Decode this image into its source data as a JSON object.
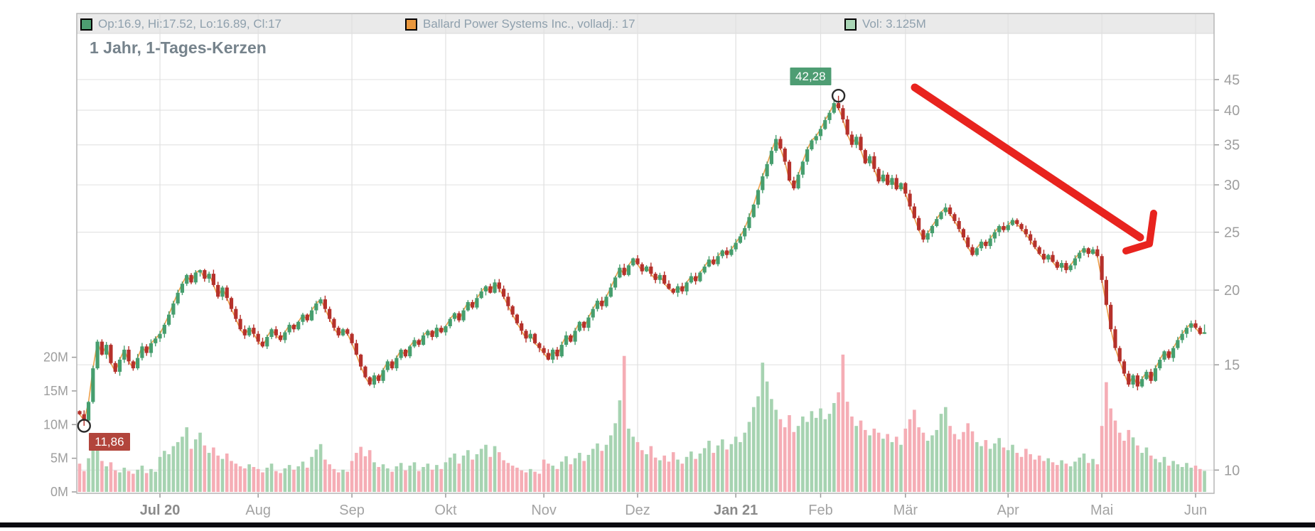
{
  "title": "1 Jahr, 1-Tages-Kerzen",
  "legend": {
    "items": [
      {
        "swatch_color": "#4d9e72",
        "label": "Op:16.9, Hi:17.52, Lo:16.89, Cl:17"
      },
      {
        "swatch_color": "#e9973d",
        "label": "Ballard Power Systems Inc., volladj.: 17"
      },
      {
        "swatch_color": "#a9d5b5",
        "label": "Vol: 3.125M"
      }
    ]
  },
  "markers": {
    "high": {
      "label": "42,28",
      "day": 170,
      "price": 42.28,
      "badge_bg": "#4e9d73"
    },
    "low": {
      "label": "11,86",
      "day": 1,
      "price": 11.86,
      "badge_bg": "#b2453c"
    }
  },
  "axes": {
    "price_ticks": [
      10,
      15,
      20,
      25,
      30,
      35,
      40,
      45
    ],
    "volume_ticks": [
      {
        "label": "0M",
        "value": 0
      },
      {
        "label": "5M",
        "value": 5
      },
      {
        "label": "10M",
        "value": 10
      },
      {
        "label": "15M",
        "value": 15
      },
      {
        "label": "20M",
        "value": 20
      }
    ],
    "months": [
      {
        "label": "Jul 20",
        "day": 18,
        "bold": true
      },
      {
        "label": "Aug",
        "day": 40,
        "bold": false
      },
      {
        "label": "Sep",
        "day": 61,
        "bold": false
      },
      {
        "label": "Okt",
        "day": 82,
        "bold": false
      },
      {
        "label": "Nov",
        "day": 104,
        "bold": false
      },
      {
        "label": "Dez",
        "day": 125,
        "bold": false
      },
      {
        "label": "Jan 21",
        "day": 147,
        "bold": true
      },
      {
        "label": "Feb",
        "day": 166,
        "bold": false
      },
      {
        "label": "Mär",
        "day": 185,
        "bold": false
      },
      {
        "label": "Apr",
        "day": 208,
        "bold": false
      },
      {
        "label": "Mai",
        "day": 229,
        "bold": false
      },
      {
        "label": "Jun",
        "day": 250,
        "bold": false
      }
    ]
  },
  "chart_data": {
    "type": "candlestick",
    "instrument": "Ballard Power Systems Inc.",
    "period": "1 Jahr",
    "interval": "1-Tages-Kerzen",
    "scale": "log",
    "price_axis_range": [
      9.1,
      53.5
    ],
    "volume_axis_range_m": [
      0,
      22
    ],
    "first_open": 12.55,
    "last_candle": {
      "open": 16.9,
      "high": 17.52,
      "low": 16.89,
      "close": 17
    },
    "high_of_period": 42.28,
    "low_of_period": 11.86,
    "last_volume_m": 3.125,
    "closes": [
      12.4,
      12.1,
      13.0,
      14.8,
      16.4,
      15.6,
      16.2,
      15.1,
      14.6,
      15.3,
      15.9,
      15.2,
      14.8,
      15.4,
      16.1,
      15.7,
      16.3,
      16.6,
      16.9,
      17.5,
      18.2,
      19.0,
      19.8,
      20.5,
      21.2,
      20.6,
      21.4,
      21.6,
      20.9,
      21.3,
      20.4,
      19.5,
      20.2,
      19.4,
      18.6,
      17.9,
      17.2,
      16.8,
      17.3,
      16.9,
      16.4,
      16.1,
      16.7,
      17.2,
      16.8,
      16.5,
      17.0,
      17.5,
      17.2,
      17.7,
      18.2,
      17.8,
      18.5,
      19.0,
      19.3,
      18.6,
      17.9,
      17.3,
      16.8,
      17.2,
      16.9,
      16.3,
      15.6,
      14.9,
      14.3,
      13.9,
      14.4,
      14.1,
      14.7,
      15.2,
      14.8,
      15.4,
      15.9,
      15.5,
      16.1,
      16.5,
      16.2,
      16.8,
      17.1,
      16.7,
      17.3,
      17.0,
      17.4,
      17.9,
      18.3,
      17.8,
      18.5,
      19.1,
      18.7,
      19.4,
      19.9,
      20.3,
      19.8,
      20.6,
      20.1,
      19.5,
      18.8,
      18.2,
      17.6,
      17.1,
      16.6,
      16.9,
      16.3,
      16.0,
      15.7,
      15.3,
      15.9,
      15.5,
      16.2,
      16.8,
      16.4,
      17.1,
      17.7,
      17.3,
      18.0,
      18.6,
      19.2,
      18.8,
      19.5,
      20.2,
      21.0,
      21.8,
      21.2,
      22.0,
      22.6,
      22.1,
      21.5,
      21.9,
      21.3,
      20.8,
      21.2,
      20.5,
      20.1,
      19.8,
      20.3,
      19.9,
      20.6,
      21.1,
      20.7,
      21.4,
      21.9,
      22.5,
      22.1,
      22.8,
      23.3,
      22.9,
      23.4,
      24.0,
      24.6,
      25.4,
      26.5,
      27.8,
      29.4,
      31.0,
      32.5,
      34.2,
      35.8,
      34.5,
      32.8,
      30.5,
      29.6,
      31.2,
      32.8,
      34.4,
      35.6,
      36.2,
      37.2,
      38.5,
      39.6,
      41.1,
      40.3,
      38.6,
      36.4,
      35.0,
      36.1,
      34.3,
      32.6,
      33.5,
      31.9,
      30.4,
      31.2,
      30.0,
      30.8,
      29.5,
      30.2,
      29.0,
      27.6,
      26.4,
      25.2,
      24.3,
      24.9,
      25.6,
      26.3,
      27.0,
      27.5,
      26.8,
      26.1,
      25.3,
      24.5,
      23.6,
      22.9,
      23.5,
      24.1,
      23.7,
      24.4,
      25.0,
      25.6,
      25.2,
      25.7,
      26.2,
      25.8,
      25.3,
      24.8,
      24.2,
      23.6,
      23.0,
      22.5,
      22.9,
      22.3,
      21.8,
      22.2,
      21.6,
      22.0,
      22.6,
      23.1,
      23.5,
      23.0,
      23.4,
      22.8,
      20.8,
      18.9,
      17.2,
      16.0,
      15.2,
      14.5,
      13.9,
      14.4,
      13.8,
      14.2,
      14.6,
      14.1,
      14.8,
      15.3,
      15.8,
      15.4,
      16.0,
      16.5,
      16.9,
      17.3,
      17.6,
      17.3,
      16.9,
      17.0
    ],
    "volumes_m": [
      4.2,
      3.1,
      5.0,
      7.2,
      8.1,
      4.6,
      3.8,
      4.4,
      3.2,
      2.9,
      3.6,
      3.1,
      2.7,
      3.3,
      3.9,
      2.8,
      3.4,
      3.0,
      5.2,
      6.1,
      5.6,
      6.8,
      7.4,
      8.2,
      9.6,
      6.4,
      7.8,
      8.8,
      6.9,
      5.8,
      6.6,
      5.4,
      4.9,
      5.7,
      4.6,
      4.2,
      3.8,
      3.5,
      4.1,
      3.7,
      3.4,
      2.9,
      3.6,
      4.2,
      3.1,
      2.8,
      3.5,
      4.0,
      3.3,
      3.8,
      4.5,
      3.6,
      5.2,
      6.3,
      7.1,
      4.8,
      4.1,
      3.4,
      2.9,
      3.3,
      3.0,
      4.6,
      5.8,
      6.7,
      5.3,
      6.2,
      4.4,
      3.7,
      4.1,
      3.5,
      3.0,
      3.8,
      4.3,
      3.2,
      3.9,
      4.4,
      3.1,
      3.7,
      4.2,
      3.3,
      4.0,
      3.4,
      4.4,
      5.1,
      5.7,
      4.2,
      5.4,
      6.2,
      4.8,
      5.6,
      6.4,
      7.0,
      5.2,
      6.8,
      5.9,
      4.7,
      4.3,
      3.9,
      3.6,
      3.2,
      2.9,
      3.4,
      3.0,
      2.7,
      4.8,
      4.2,
      3.9,
      3.4,
      4.5,
      5.3,
      4.1,
      5.0,
      5.8,
      4.6,
      5.5,
      6.4,
      7.2,
      6.1,
      7.0,
      8.4,
      10.2,
      13.6,
      20.2,
      9.4,
      8.2,
      7.4,
      6.2,
      5.6,
      6.8,
      5.1,
      4.7,
      5.4,
      4.5,
      5.9,
      4.8,
      4.2,
      5.2,
      6.0,
      4.9,
      5.7,
      6.5,
      7.6,
      5.8,
      6.9,
      7.8,
      6.3,
      7.1,
      8.2,
      7.4,
      8.8,
      10.4,
      12.6,
      14.2,
      19.2,
      16.4,
      13.8,
      12.2,
      10.8,
      9.6,
      11.4,
      8.9,
      9.8,
      11.2,
      10.4,
      12.0,
      11.0,
      12.4,
      10.8,
      11.6,
      13.2,
      14.8,
      20.4,
      13.4,
      11.2,
      9.8,
      10.6,
      9.2,
      8.4,
      9.4,
      8.8,
      7.9,
      8.6,
      7.4,
      8.2,
      7.0,
      9.4,
      10.8,
      12.2,
      9.6,
      8.8,
      7.6,
      8.4,
      9.2,
      11.6,
      12.6,
      9.8,
      8.6,
      7.8,
      8.9,
      10.2,
      9.0,
      7.4,
      6.8,
      7.7,
      6.4,
      7.2,
      8.0,
      6.6,
      6.2,
      7.0,
      5.8,
      5.2,
      6.4,
      5.6,
      4.8,
      5.4,
      4.6,
      5.0,
      4.4,
      4.0,
      4.7,
      4.2,
      3.8,
      4.5,
      5.1,
      5.7,
      4.3,
      4.9,
      4.1,
      9.8,
      16.3,
      12.4,
      10.6,
      8.8,
      7.6,
      9.2,
      8.1,
      6.9,
      5.8,
      6.6,
      5.4,
      4.9,
      4.4,
      5.2,
      3.9,
      4.6,
      4.1,
      3.7,
      4.3,
      3.6,
      3.9,
      3.4,
      3.125
    ],
    "colors": {
      "up": "#469e6e",
      "down": "#b5312b",
      "vol_up": "#a6d3b1",
      "vol_down": "#f5adb5",
      "adjusted_line": "#eda04a"
    },
    "legend_position": "top",
    "grid": true
  },
  "annotation": {
    "type": "arrow",
    "color": "#e8231e",
    "shaft": [
      [
        1287,
        123
      ],
      [
        1604,
        334
      ]
    ],
    "head": [
      [
        1623,
        300
      ],
      [
        1617,
        343
      ],
      [
        1584,
        353
      ]
    ]
  }
}
